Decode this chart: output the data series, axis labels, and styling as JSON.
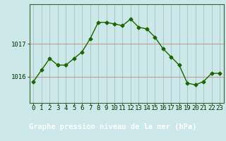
{
  "x": [
    0,
    1,
    2,
    3,
    4,
    5,
    6,
    7,
    8,
    9,
    10,
    11,
    12,
    13,
    14,
    15,
    16,
    17,
    18,
    19,
    20,
    21,
    22,
    23
  ],
  "y": [
    1015.85,
    1016.2,
    1016.55,
    1016.35,
    1016.35,
    1016.55,
    1016.75,
    1017.15,
    1017.65,
    1017.65,
    1017.6,
    1017.55,
    1017.75,
    1017.5,
    1017.45,
    1017.2,
    1016.85,
    1016.6,
    1016.35,
    1015.8,
    1015.75,
    1015.85,
    1016.1,
    1016.1
  ],
  "line_color": "#1a6600",
  "marker": "D",
  "marker_size": 2.5,
  "bg_color": "#cce8e8",
  "grid_v_color": "#aacccc",
  "grid_h_color": "#cc9999",
  "ylabel_ticks": [
    1016,
    1017
  ],
  "xlabel": "Graphe pression niveau de la mer (hPa)",
  "xlabel_fontsize": 7.5,
  "tick_fontsize": 6.5,
  "ylim": [
    1015.2,
    1018.2
  ],
  "xlim": [
    -0.5,
    23.5
  ],
  "axis_color": "#336633",
  "label_color": "#003300",
  "bottom_bar_color": "#336600",
  "bottom_bar_height": 0.22
}
